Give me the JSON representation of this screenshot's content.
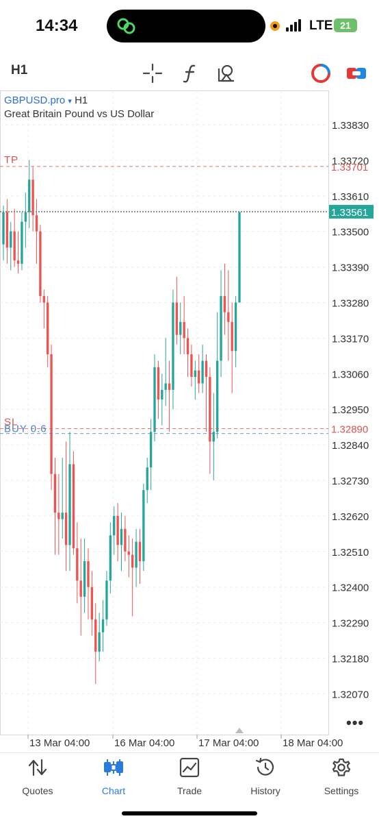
{
  "status_bar": {
    "time": "14:34",
    "network": "LTE",
    "battery": "21"
  },
  "toolbar": {
    "timeframe": "H1"
  },
  "chart_header": {
    "symbol": "GBPUSD.pro",
    "symbol_arrow": "▾",
    "timeframe": "H1",
    "description": "Great Britain Pound vs US Dollar"
  },
  "chart_data": {
    "type": "candlestick",
    "title": "",
    "price_axis_labels": [
      "1.33830",
      "1.33720",
      "1.33610",
      "1.33500",
      "1.33390",
      "1.33280",
      "1.33170",
      "1.33060",
      "1.32950",
      "1.32840",
      "1.32730",
      "1.32620",
      "1.32510",
      "1.32400",
      "1.32290",
      "1.32180",
      "1.32070"
    ],
    "time_axis_labels": [
      "13 Mar 04:00",
      "16 Mar 04:00",
      "17 Mar 04:00",
      "18 Mar 04:00"
    ],
    "ylim": [
      1.3199,
      1.3396
    ],
    "bull_color": "#26a69a",
    "bear_color": "#ef5350",
    "current_price": "1.33561",
    "levels": [
      {
        "name": "TP",
        "label": "TP",
        "price": 1.33701,
        "price_label": "1.33701",
        "color": "#d9534f"
      },
      {
        "name": "SL",
        "label": "SL",
        "price": 1.3289,
        "price_label": "1.32890",
        "color": "#d9534f"
      },
      {
        "name": "BUY",
        "label": "BUY 0.6",
        "price": 1.32875,
        "color": "#4a7fd4"
      }
    ],
    "candles": [
      {
        "o": 1.3346,
        "h": 1.3358,
        "l": 1.3341,
        "c": 1.3356
      },
      {
        "o": 1.3356,
        "h": 1.336,
        "l": 1.334,
        "c": 1.3345
      },
      {
        "o": 1.3345,
        "h": 1.3353,
        "l": 1.3338,
        "c": 1.335
      },
      {
        "o": 1.335,
        "h": 1.3357,
        "l": 1.3339,
        "c": 1.3341
      },
      {
        "o": 1.3341,
        "h": 1.335,
        "l": 1.3337,
        "c": 1.334
      },
      {
        "o": 1.334,
        "h": 1.3356,
        "l": 1.3338,
        "c": 1.3353
      },
      {
        "o": 1.3353,
        "h": 1.3362,
        "l": 1.3345,
        "c": 1.3356
      },
      {
        "o": 1.3356,
        "h": 1.3372,
        "l": 1.3351,
        "c": 1.3366
      },
      {
        "o": 1.3366,
        "h": 1.337,
        "l": 1.335,
        "c": 1.3355
      },
      {
        "o": 1.3355,
        "h": 1.336,
        "l": 1.334,
        "c": 1.335
      },
      {
        "o": 1.335,
        "h": 1.3352,
        "l": 1.3328,
        "c": 1.333
      },
      {
        "o": 1.333,
        "h": 1.3332,
        "l": 1.332,
        "c": 1.3328
      },
      {
        "o": 1.3328,
        "h": 1.333,
        "l": 1.3308,
        "c": 1.3312
      },
      {
        "o": 1.3312,
        "h": 1.3315,
        "l": 1.327,
        "c": 1.3275
      },
      {
        "o": 1.3275,
        "h": 1.328,
        "l": 1.325,
        "c": 1.3263
      },
      {
        "o": 1.3263,
        "h": 1.3275,
        "l": 1.325,
        "c": 1.3261
      },
      {
        "o": 1.3261,
        "h": 1.328,
        "l": 1.3255,
        "c": 1.3263
      },
      {
        "o": 1.3263,
        "h": 1.3285,
        "l": 1.3245,
        "c": 1.3253
      },
      {
        "o": 1.3253,
        "h": 1.3288,
        "l": 1.3245,
        "c": 1.3278
      },
      {
        "o": 1.3278,
        "h": 1.3282,
        "l": 1.325,
        "c": 1.3252
      },
      {
        "o": 1.3252,
        "h": 1.326,
        "l": 1.3235,
        "c": 1.3242
      },
      {
        "o": 1.3242,
        "h": 1.3255,
        "l": 1.3225,
        "c": 1.3237
      },
      {
        "o": 1.3237,
        "h": 1.3255,
        "l": 1.3232,
        "c": 1.3248
      },
      {
        "o": 1.3248,
        "h": 1.3252,
        "l": 1.323,
        "c": 1.324
      },
      {
        "o": 1.324,
        "h": 1.3245,
        "l": 1.3225,
        "c": 1.323
      },
      {
        "o": 1.323,
        "h": 1.3235,
        "l": 1.321,
        "c": 1.322
      },
      {
        "o": 1.322,
        "h": 1.3232,
        "l": 1.3217,
        "c": 1.3226
      },
      {
        "o": 1.3226,
        "h": 1.3236,
        "l": 1.322,
        "c": 1.323
      },
      {
        "o": 1.323,
        "h": 1.3245,
        "l": 1.3228,
        "c": 1.3242
      },
      {
        "o": 1.3242,
        "h": 1.326,
        "l": 1.3238,
        "c": 1.3256
      },
      {
        "o": 1.3256,
        "h": 1.3265,
        "l": 1.325,
        "c": 1.3262
      },
      {
        "o": 1.3262,
        "h": 1.3266,
        "l": 1.3248,
        "c": 1.3253
      },
      {
        "o": 1.3253,
        "h": 1.3263,
        "l": 1.3245,
        "c": 1.3258
      },
      {
        "o": 1.3258,
        "h": 1.3262,
        "l": 1.3248,
        "c": 1.3251
      },
      {
        "o": 1.3251,
        "h": 1.3256,
        "l": 1.3243,
        "c": 1.325
      },
      {
        "o": 1.325,
        "h": 1.3255,
        "l": 1.3231,
        "c": 1.3246
      },
      {
        "o": 1.3246,
        "h": 1.3258,
        "l": 1.324,
        "c": 1.3254
      },
      {
        "o": 1.3254,
        "h": 1.3258,
        "l": 1.3241,
        "c": 1.3248
      },
      {
        "o": 1.3248,
        "h": 1.3272,
        "l": 1.3245,
        "c": 1.327
      },
      {
        "o": 1.327,
        "h": 1.328,
        "l": 1.3266,
        "c": 1.3277
      },
      {
        "o": 1.3277,
        "h": 1.3292,
        "l": 1.327,
        "c": 1.3288
      },
      {
        "o": 1.3288,
        "h": 1.3312,
        "l": 1.3285,
        "c": 1.3308
      },
      {
        "o": 1.3308,
        "h": 1.331,
        "l": 1.3292,
        "c": 1.3298
      },
      {
        "o": 1.3298,
        "h": 1.3306,
        "l": 1.329,
        "c": 1.3301
      },
      {
        "o": 1.3301,
        "h": 1.3317,
        "l": 1.3296,
        "c": 1.3303
      },
      {
        "o": 1.3303,
        "h": 1.331,
        "l": 1.3288,
        "c": 1.3301
      },
      {
        "o": 1.3301,
        "h": 1.3332,
        "l": 1.3295,
        "c": 1.3328
      },
      {
        "o": 1.3328,
        "h": 1.3336,
        "l": 1.3315,
        "c": 1.3318
      },
      {
        "o": 1.3318,
        "h": 1.3328,
        "l": 1.3312,
        "c": 1.3322
      },
      {
        "o": 1.3322,
        "h": 1.333,
        "l": 1.3312,
        "c": 1.3317
      },
      {
        "o": 1.3317,
        "h": 1.332,
        "l": 1.3305,
        "c": 1.3312
      },
      {
        "o": 1.3312,
        "h": 1.3315,
        "l": 1.3302,
        "c": 1.3305
      },
      {
        "o": 1.3305,
        "h": 1.331,
        "l": 1.3298,
        "c": 1.3307
      },
      {
        "o": 1.3307,
        "h": 1.3312,
        "l": 1.33,
        "c": 1.3303
      },
      {
        "o": 1.3303,
        "h": 1.3315,
        "l": 1.33,
        "c": 1.331
      },
      {
        "o": 1.331,
        "h": 1.3312,
        "l": 1.3288,
        "c": 1.3305
      },
      {
        "o": 1.3305,
        "h": 1.3308,
        "l": 1.3275,
        "c": 1.3285
      },
      {
        "o": 1.3285,
        "h": 1.33,
        "l": 1.3273,
        "c": 1.3288
      },
      {
        "o": 1.3288,
        "h": 1.3325,
        "l": 1.3286,
        "c": 1.331
      },
      {
        "o": 1.331,
        "h": 1.3338,
        "l": 1.3305,
        "c": 1.333
      },
      {
        "o": 1.333,
        "h": 1.334,
        "l": 1.3318,
        "c": 1.3325
      },
      {
        "o": 1.3325,
        "h": 1.3338,
        "l": 1.331,
        "c": 1.3322
      },
      {
        "o": 1.3322,
        "h": 1.3328,
        "l": 1.33,
        "c": 1.3313
      },
      {
        "o": 1.3313,
        "h": 1.333,
        "l": 1.3308,
        "c": 1.3328
      },
      {
        "o": 1.3328,
        "h": 1.3356,
        "l": 1.3328,
        "c": 1.3356
      }
    ]
  },
  "tabs": [
    {
      "label": "Quotes",
      "icon": "sort-arrows-icon"
    },
    {
      "label": "Chart",
      "icon": "candles-icon"
    },
    {
      "label": "Trade",
      "icon": "trade-chart-icon"
    },
    {
      "label": "History",
      "icon": "history-clock-icon"
    },
    {
      "label": "Settings",
      "icon": "gear-icon"
    }
  ]
}
